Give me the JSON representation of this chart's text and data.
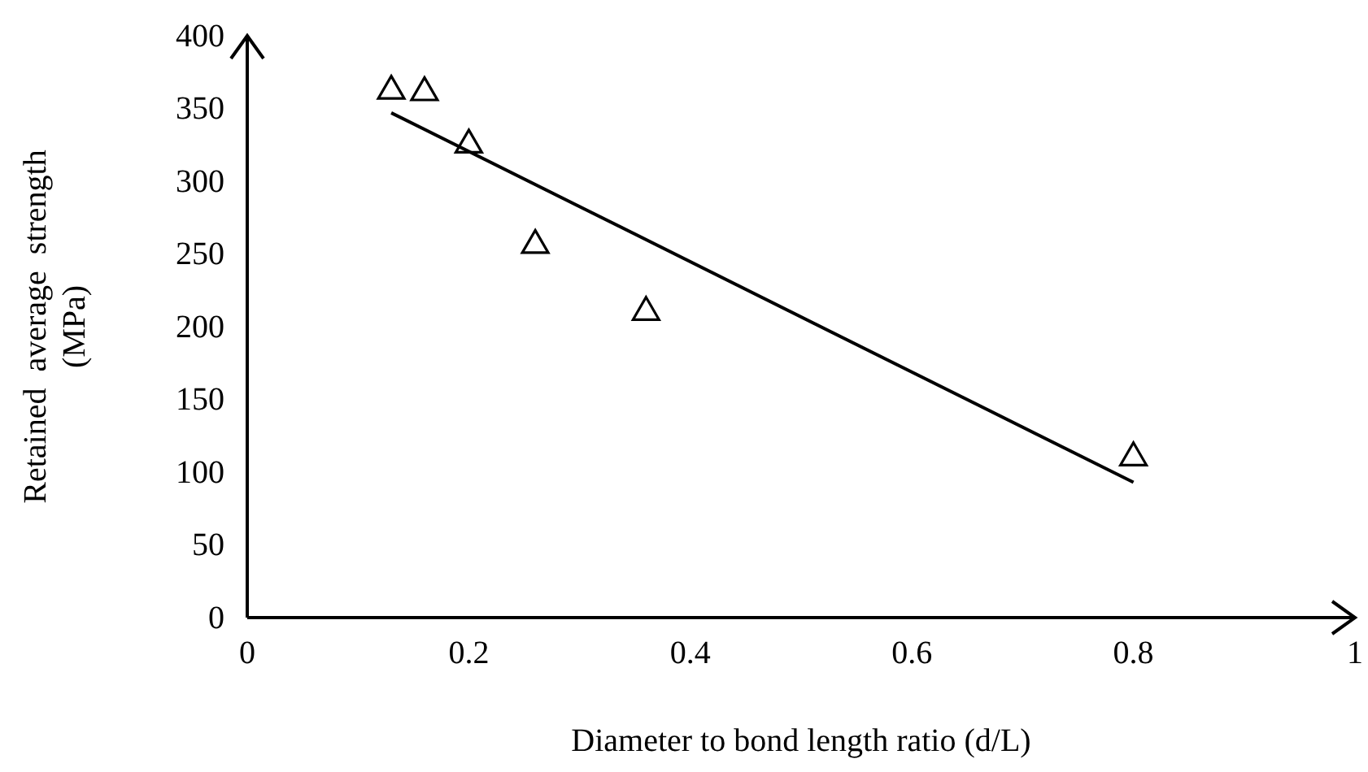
{
  "chart_data": {
    "type": "scatter",
    "xlabel": "Diameter to bond length ratio (d/L)",
    "ylabel": "Retained  average  strength (MPa)",
    "xlim": [
      0,
      1
    ],
    "ylim": [
      0,
      400
    ],
    "xticks": [
      0,
      0.2,
      0.4,
      0.6,
      0.8,
      1
    ],
    "yticks": [
      0,
      50,
      100,
      150,
      200,
      250,
      300,
      350,
      400
    ],
    "marker": "triangle",
    "grid": false,
    "series": [
      {
        "color": "#000000",
        "x": [
          0.13,
          0.16,
          0.2,
          0.26,
          0.36,
          0.8
        ],
        "values": [
          362,
          361,
          325,
          256,
          210,
          110
        ]
      },
      {
        "type": "line",
        "marker": "none",
        "color": "#000000",
        "x": [
          0.13,
          0.8
        ],
        "values": [
          347,
          93
        ]
      }
    ]
  }
}
